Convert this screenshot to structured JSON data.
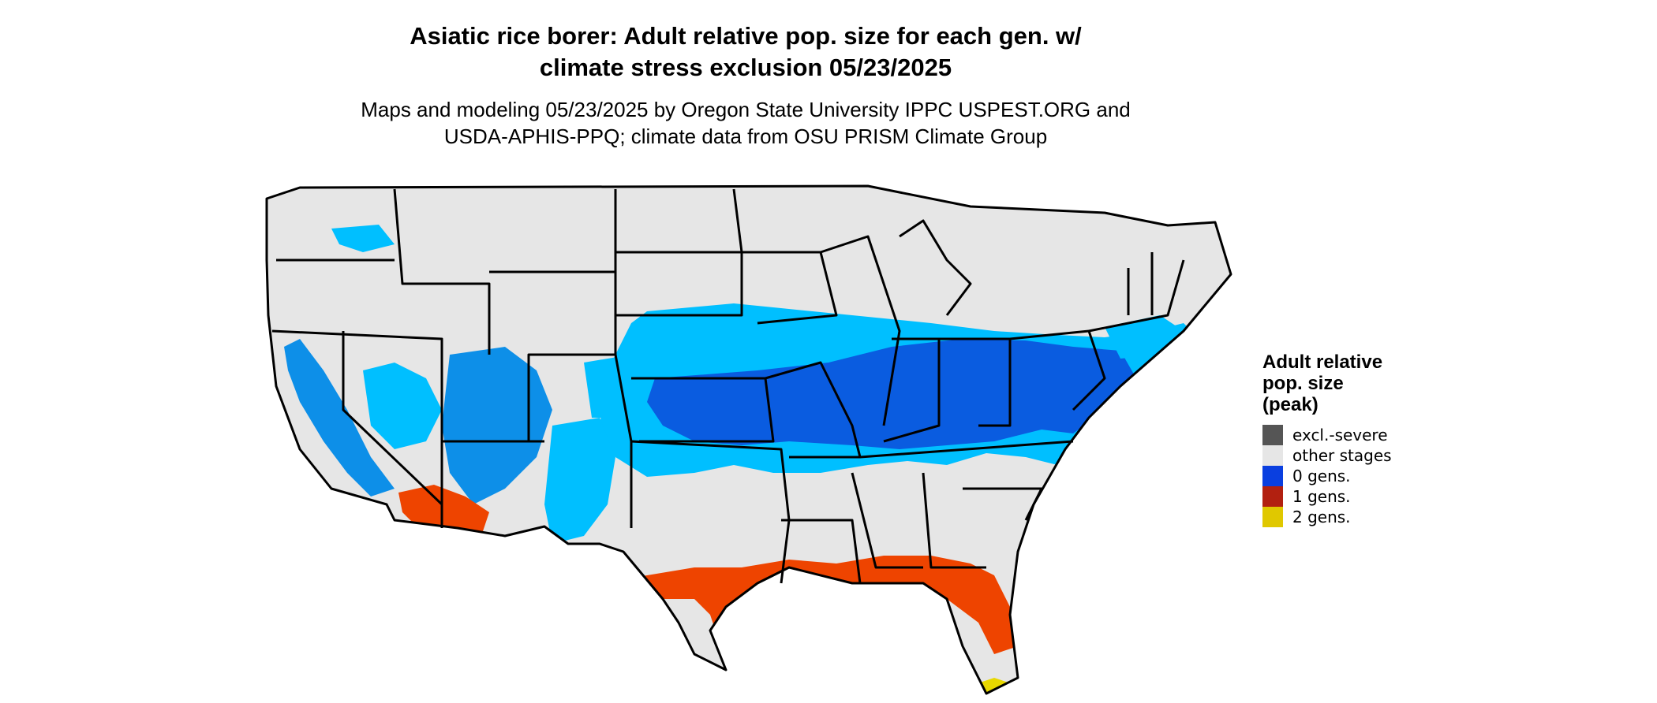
{
  "title": {
    "line1": "Asiatic rice borer: Adult relative pop. size for each gen. w/",
    "line2": "climate stress exclusion 05/23/2025"
  },
  "subtitle": {
    "line1": "Maps and modeling 05/23/2025 by Oregon State University IPPC USPEST.ORG and",
    "line2": "USDA-APHIS-PPQ; climate data from OSU PRISM Climate Group"
  },
  "map": {
    "land_color": "#e6e6e6",
    "border_color": "#000000",
    "light_blue": "#00bfff",
    "mid_blue": "#0d8fe8",
    "dark_blue": "#0a5ce0",
    "orange": "#ee4400",
    "yellow": "#e8d800"
  },
  "legend": {
    "title_line1": "Adult relative",
    "title_line2": "pop. size",
    "title_line3": "(peak)",
    "items": [
      {
        "label": "excl.-severe",
        "color": "#555555"
      },
      {
        "label": "other stages",
        "color": "#e6e6e6"
      },
      {
        "label": "0 gens.",
        "color": "#0a3fe0"
      },
      {
        "label": "1 gens.",
        "color": "#b22010"
      },
      {
        "label": "2 gens.",
        "color": "#e0c800"
      }
    ]
  }
}
